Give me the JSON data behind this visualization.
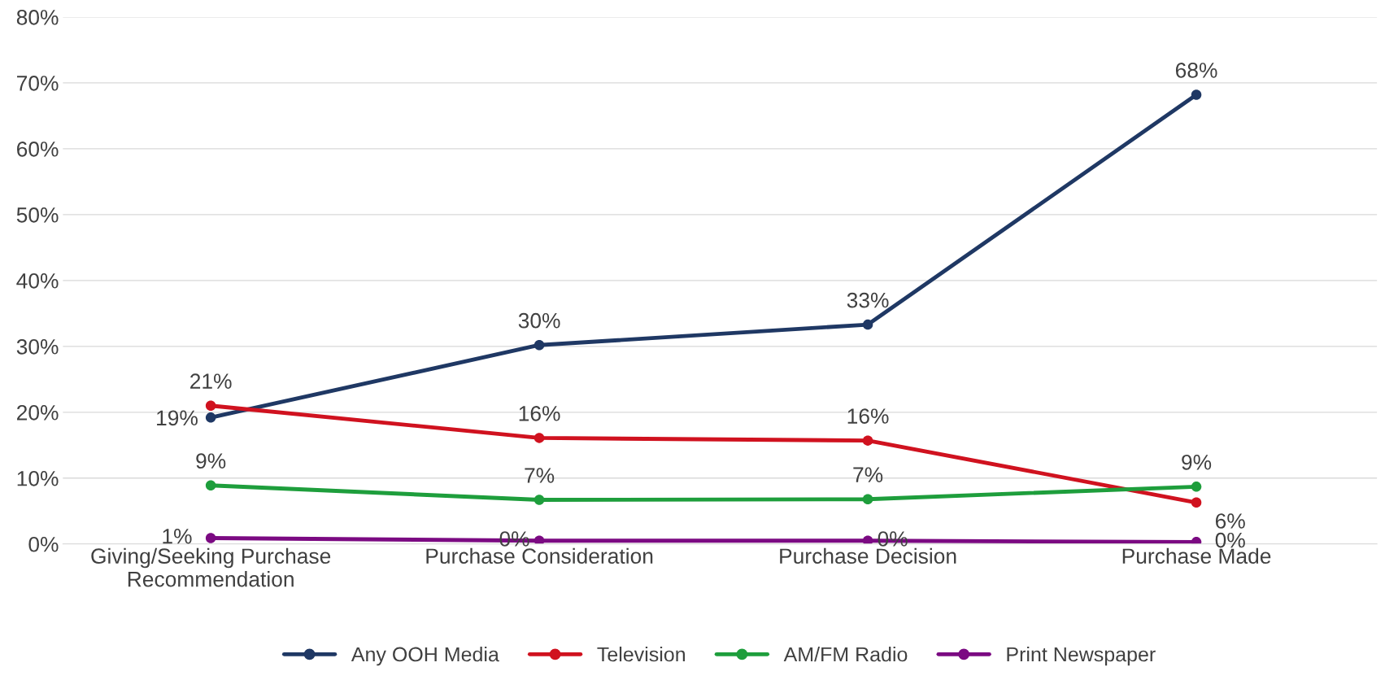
{
  "chart_data": {
    "type": "line",
    "categories": [
      "Giving/Seeking Purchase\nRecommendation",
      "Purchase Consideration",
      "Purchase Decision",
      "Purchase Made"
    ],
    "series": [
      {
        "name": "Any OOH Media",
        "color": "#1f3864",
        "values": [
          19.2,
          30.2,
          33.3,
          68.2
        ],
        "value_labels": [
          "19%",
          "30%",
          "33%",
          "68%"
        ]
      },
      {
        "name": "Television",
        "color": "#d0121f",
        "values": [
          21.0,
          16.1,
          15.7,
          6.3
        ],
        "value_labels": [
          "21%",
          "16%",
          "16%",
          "6%"
        ]
      },
      {
        "name": "AM/FM Radio",
        "color": "#1e9e3c",
        "values": [
          8.9,
          6.7,
          6.8,
          8.7
        ],
        "value_labels": [
          "9%",
          "7%",
          "7%",
          "9%"
        ]
      },
      {
        "name": "Print Newspaper",
        "color": "#7b0a82",
        "values": [
          0.9,
          0.5,
          0.5,
          0.3
        ],
        "value_labels": [
          "1%",
          "0%",
          "0%",
          "0%"
        ]
      }
    ],
    "ylim": [
      0,
      80
    ],
    "yticks": [
      {
        "value": 0,
        "label": "0%"
      },
      {
        "value": 10,
        "label": "10%"
      },
      {
        "value": 20,
        "label": "20%"
      },
      {
        "value": 30,
        "label": "30%"
      },
      {
        "value": 40,
        "label": "40%"
      },
      {
        "value": 50,
        "label": "50%"
      },
      {
        "value": 60,
        "label": "60%"
      },
      {
        "value": 70,
        "label": "70%"
      },
      {
        "value": 80,
        "label": "80%"
      }
    ],
    "grid": "y",
    "legend": "bottom",
    "marker": "circle",
    "line_style": "solid"
  }
}
